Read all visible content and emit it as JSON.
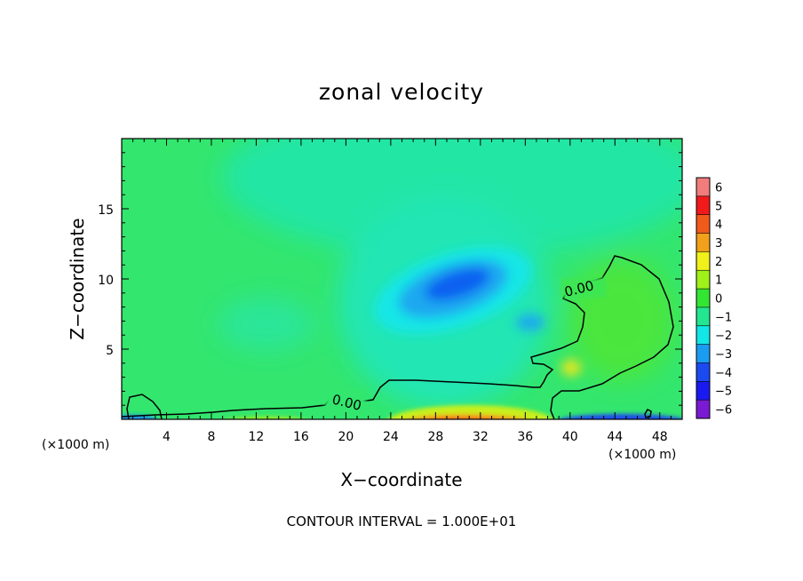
{
  "chart_data": {
    "type": "heatmap",
    "title": "zonal velocity",
    "xlabel": "X−coordinate",
    "ylabel": "Z−coordinate",
    "x_unit": "(×1000 m)",
    "y_unit": "(×1000 m)",
    "xlim": [
      0,
      50
    ],
    "ylim": [
      0,
      20
    ],
    "x_ticks": [
      "4",
      "8",
      "12",
      "16",
      "20",
      "24",
      "28",
      "32",
      "36",
      "40",
      "44",
      "48"
    ],
    "y_ticks": [
      "5",
      "10",
      "15"
    ],
    "colorbar": {
      "ticks": [
        "6",
        "5",
        "4",
        "3",
        "2",
        "1",
        "0",
        "−1",
        "−2",
        "−3",
        "−4",
        "−5",
        "−6"
      ],
      "min": -6,
      "max": 6
    },
    "contour_labels": [
      "0.00",
      "0.00"
    ],
    "footer": "CONTOUR INTERVAL = 1.000E+01"
  }
}
